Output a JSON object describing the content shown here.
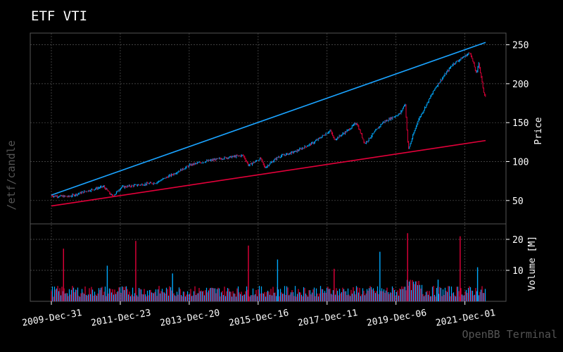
{
  "title": "ETF VTI",
  "watermark_left": "/etf/candle",
  "watermark_brand": "OpenBB Terminal",
  "colors": {
    "up": "#00aaff",
    "down": "#e4003a",
    "support": "#e4003a",
    "resistance": "#1aa3ff",
    "grid": "#555555",
    "background": "#000000"
  },
  "chart_data": [
    {
      "type": "line",
      "title": "ETF VTI",
      "ylabel": "Price",
      "ylim": [
        20,
        265
      ],
      "yticks": [
        50,
        100,
        150,
        200,
        250
      ],
      "x": [
        "2009-12-31",
        "2010-06-30",
        "2010-12-31",
        "2011-06-30",
        "2011-10-03",
        "2011-12-30",
        "2012-06-29",
        "2012-12-31",
        "2013-06-28",
        "2013-12-31",
        "2014-06-30",
        "2014-12-31",
        "2015-06-30",
        "2015-08-25",
        "2015-12-31",
        "2016-02-11",
        "2016-06-30",
        "2016-12-30",
        "2017-06-30",
        "2017-12-29",
        "2018-02-08",
        "2018-06-29",
        "2018-09-28",
        "2018-12-24",
        "2019-06-28",
        "2019-12-31",
        "2020-02-19",
        "2020-03-23",
        "2020-06-30",
        "2020-12-31",
        "2021-06-30",
        "2021-12-31",
        "2022-03-08",
        "2022-03-29",
        "2022-05-20",
        "2022-06-10"
      ],
      "series": [
        {
          "values": [
            56,
            55,
            62,
            68,
            55,
            67,
            70,
            73,
            84,
            96,
            101,
            105,
            108,
            95,
            104,
            92,
            106,
            113,
            124,
            140,
            128,
            140,
            150,
            123,
            150,
            162,
            175,
            115,
            152,
            195,
            225,
            240,
            212,
            228,
            190,
            183
          ]
        }
      ],
      "trendlines": [
        {
          "x": [
            "2009-12-31",
            "2022-06-10"
          ],
          "values": [
            57,
            253
          ]
        },
        {
          "x": [
            "2009-12-31",
            "2022-06-10"
          ],
          "values": [
            43,
            127
          ]
        }
      ],
      "xticks": [
        "2009-Dec-31",
        "2011-Dec-23",
        "2013-Dec-20",
        "2015-Dec-16",
        "2017-Dec-11",
        "2019-Dec-06",
        "2021-Dec-01"
      ]
    },
    {
      "type": "bar",
      "ylabel": "Volume [M]",
      "ylim": [
        0,
        25
      ],
      "yticks": [
        10,
        20
      ],
      "x": [
        "2010-05-07",
        "2011-08-08",
        "2012-06-01",
        "2013-06-21",
        "2015-08-24",
        "2016-06-24",
        "2018-02-06",
        "2019-05-31",
        "2020-03-16",
        "2021-01-29",
        "2021-09-17",
        "2022-03-18"
      ],
      "values": [
        17,
        11.5,
        19.5,
        9,
        18,
        13.5,
        10.5,
        16,
        22,
        7,
        21,
        11
      ]
    }
  ]
}
